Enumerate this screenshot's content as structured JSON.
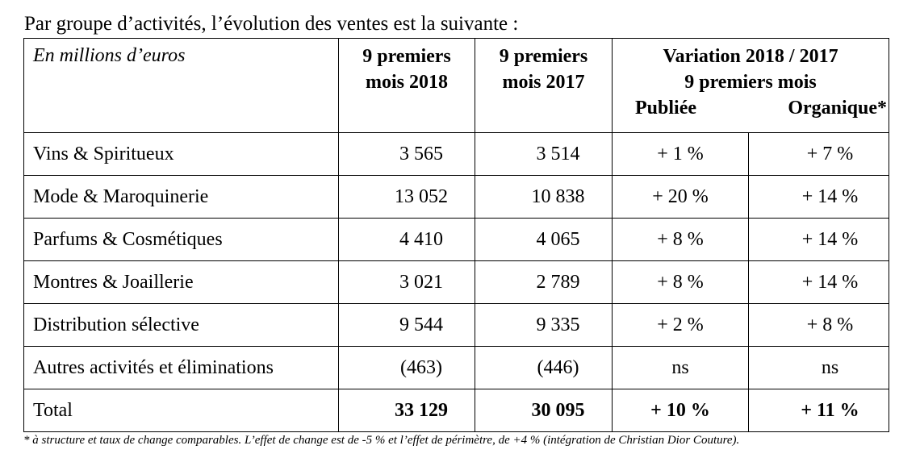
{
  "intro": "Par groupe d’activités, l’évolution des ventes est la suivante :",
  "header": {
    "unit": "En millions d’euros",
    "col1": [
      "9 premiers",
      "mois 2018"
    ],
    "col2": [
      "9 premiers",
      "mois 2017"
    ],
    "variation": [
      "Variation 2018 / 2017",
      "9 premiers mois"
    ],
    "sub_published": "Publiée",
    "sub_organic": "Organique*"
  },
  "rows": [
    {
      "label": "Vins & Spiritueux",
      "v2018": "3 565",
      "v2017": "3 514",
      "published": "+ 1 %",
      "organic": "+ 7 %"
    },
    {
      "label": "Mode & Maroquinerie",
      "v2018": "13 052",
      "v2017": "10 838",
      "published": "+ 20 %",
      "organic": "+ 14 %"
    },
    {
      "label": "Parfums & Cosmétiques",
      "v2018": "4 410",
      "v2017": "4 065",
      "published": "+ 8 %",
      "organic": "+ 14 %"
    },
    {
      "label": "Montres & Joaillerie",
      "v2018": "3 021",
      "v2017": "2 789",
      "published": "+ 8 %",
      "organic": "+ 14 %"
    },
    {
      "label": "Distribution sélective",
      "v2018": "9 544",
      "v2017": "9 335",
      "published": "+ 2 %",
      "organic": "+ 8 %"
    },
    {
      "label": "Autres activités et éliminations",
      "v2018": "(463)",
      "v2017": "(446)",
      "published": "ns",
      "organic": "ns"
    }
  ],
  "total": {
    "label": "Total",
    "v2018": "33 129",
    "v2017": "30 095",
    "published": "+ 10 %",
    "organic": "+ 11 %"
  },
  "footnote": "* à structure et taux de change comparables. L’effet de change est de -5 % et l’effet de périmètre, de +4 % (intégration de Christian Dior Couture)."
}
